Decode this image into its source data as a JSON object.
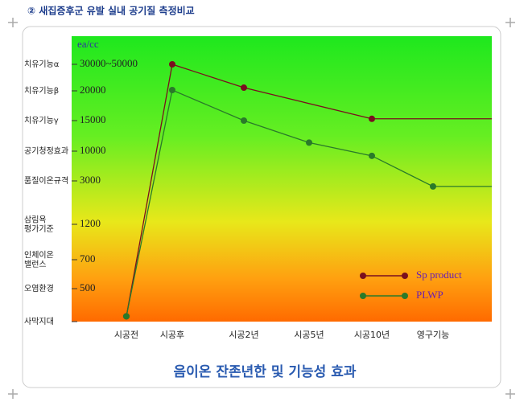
{
  "chart_data": {
    "type": "line",
    "header": "② 새집증후군 유발 실내 공기질 측정비교",
    "title": "음이온 잔존년한 및 기능성 효과",
    "y_unit": "ea/cc",
    "categories": [
      "시공전",
      "시공후",
      "시공2년",
      "시공5년",
      "시공10년",
      "영구기능"
    ],
    "series": [
      {
        "name": "Sp product",
        "color": "#7a0f1f",
        "values": [
          80,
          30000,
          21200,
          null,
          15300,
          null
        ]
      },
      {
        "name": "PLWP",
        "color": "#2a7a2a",
        "values": [
          80,
          20300,
          15000,
          11400,
          8900,
          2770
        ]
      }
    ],
    "ylim": [
      0,
      40000
    ],
    "yticks": [
      {
        "value": 0,
        "label": null
      },
      500,
      700,
      1200,
      3000,
      10000,
      15000,
      20000,
      {
        "value": 30000,
        "label": "30000~50000"
      }
    ],
    "ytick_names": [
      "사막지대",
      "오염환경",
      "인체이온\n밸런스",
      "삼림욕\n평가기준",
      "품질이온규격",
      "공기청정효과",
      "치유기능γ",
      "치유기능β",
      "치유기능α"
    ],
    "legend": "lower right"
  }
}
